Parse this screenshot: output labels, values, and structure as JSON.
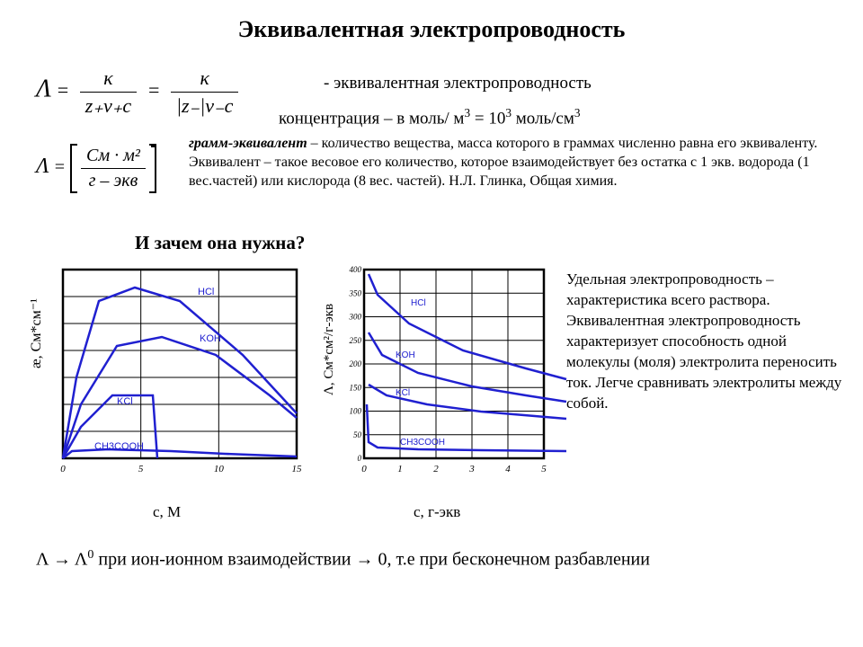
{
  "title": "Эквивалентная электропроводность",
  "equation1": {
    "lhs": "Λ",
    "eq": "=",
    "frac1_num": "κ",
    "frac1_den": "z₊ν₊c",
    "frac2_num": "κ",
    "frac2_den": "|z₋|ν₋c"
  },
  "definition1": "- эквивалентная электропроводность",
  "definition2_a": "концентрация – в моль/ м",
  "definition2_b": " = 10",
  "definition2_c": " моль/см",
  "equation2": {
    "lhs": "Λ",
    "eq": "=",
    "unit_num": "См · м²",
    "unit_den": "г – экв"
  },
  "gram_bold": "грамм-эквивалент",
  "gram_text": " – количество вещества, масса которого в граммах численно равна его эквиваленту. Эквивалент – такое весовое его количество, которое взаимодействует без остатка с 1 экв. водорода (1 вес.частей) или кислорода (8 вес. частей).  Н.Л. Глинка, Общая химия.",
  "why": "И зачем она нужна?",
  "chart1": {
    "type": "line",
    "xlim": [
      0,
      15
    ],
    "xtick_step": 5,
    "ylim": [
      0,
      1.0
    ],
    "rows": 7,
    "cols": 3,
    "background": "#ffffff",
    "grid_color": "#000000",
    "line_color": "#2020d0",
    "line_width": 2.5,
    "series": [
      {
        "name": "HCl",
        "label_x": 150,
        "label_y": 28,
        "points": [
          [
            0,
            210
          ],
          [
            15,
            120
          ],
          [
            40,
            35
          ],
          [
            80,
            20
          ],
          [
            130,
            35
          ],
          [
            200,
            95
          ],
          [
            260,
            160
          ]
        ]
      },
      {
        "name": "KOH",
        "label_x": 152,
        "label_y": 80,
        "points": [
          [
            0,
            210
          ],
          [
            20,
            150
          ],
          [
            60,
            85
          ],
          [
            110,
            75
          ],
          [
            170,
            95
          ],
          [
            230,
            140
          ],
          [
            260,
            165
          ]
        ]
      },
      {
        "name": "KCl",
        "label_x": 60,
        "label_y": 150,
        "points": [
          [
            0,
            210
          ],
          [
            20,
            175
          ],
          [
            55,
            140
          ],
          [
            100,
            140
          ],
          [
            105,
            210
          ]
        ]
      },
      {
        "name": "CH₃COOH",
        "label_x": 35,
        "label_y": 200,
        "points": [
          [
            0,
            210
          ],
          [
            10,
            202
          ],
          [
            50,
            200
          ],
          [
            120,
            202
          ],
          [
            180,
            205
          ],
          [
            260,
            208
          ]
        ]
      }
    ],
    "xticks": [
      "0",
      "5",
      "10",
      "15"
    ],
    "ylabel": "æ, См*см⁻¹",
    "xlabel": "с, М"
  },
  "chart2": {
    "type": "line",
    "xlim": [
      0,
      5
    ],
    "xtick_step": 1,
    "ylim": [
      0,
      400
    ],
    "ytick_step": 50,
    "rows": 8,
    "cols": 5,
    "background": "#ffffff",
    "grid_color": "#000000",
    "line_color": "#2020d0",
    "line_width": 2.5,
    "series": [
      {
        "name": "HCl",
        "label_x": 52,
        "label_y": 40,
        "points": [
          [
            5,
            5
          ],
          [
            15,
            28
          ],
          [
            50,
            60
          ],
          [
            110,
            90
          ],
          [
            180,
            110
          ],
          [
            225,
            122
          ]
        ]
      },
      {
        "name": "KOH",
        "label_x": 35,
        "label_y": 98,
        "points": [
          [
            5,
            70
          ],
          [
            20,
            95
          ],
          [
            60,
            115
          ],
          [
            120,
            130
          ],
          [
            180,
            140
          ],
          [
            225,
            147
          ]
        ]
      },
      {
        "name": "KCl",
        "label_x": 35,
        "label_y": 140,
        "points": [
          [
            5,
            128
          ],
          [
            25,
            140
          ],
          [
            70,
            150
          ],
          [
            130,
            158
          ],
          [
            190,
            163
          ],
          [
            225,
            166
          ]
        ]
      },
      {
        "name": "CH₃COOH",
        "label_x": 40,
        "label_y": 195,
        "points": [
          [
            3,
            150
          ],
          [
            5,
            192
          ],
          [
            15,
            198
          ],
          [
            60,
            200
          ],
          [
            130,
            201
          ],
          [
            225,
            202
          ]
        ]
      }
    ],
    "xticks": [
      "0",
      "1",
      "2",
      "3",
      "4",
      "5"
    ],
    "yticks": [
      "0",
      "50",
      "100",
      "150",
      "200",
      "250",
      "300",
      "350",
      "400"
    ],
    "ylabel": "Λ, См*см²/г-экв",
    "xlabel": "с, г-экв"
  },
  "righttext": "Удельная электропроводность – характеристика всего раствора.\nЭквивалентная электропроводность характеризует способность одной молекулы (моля) электролита переносить ток. Легче сравнивать электролиты между собой.",
  "bottom_a": "Λ → Λ",
  "bottom_b": " при ион-ионном взаимодействии   → 0, т.е при бесконечном разбавлении"
}
